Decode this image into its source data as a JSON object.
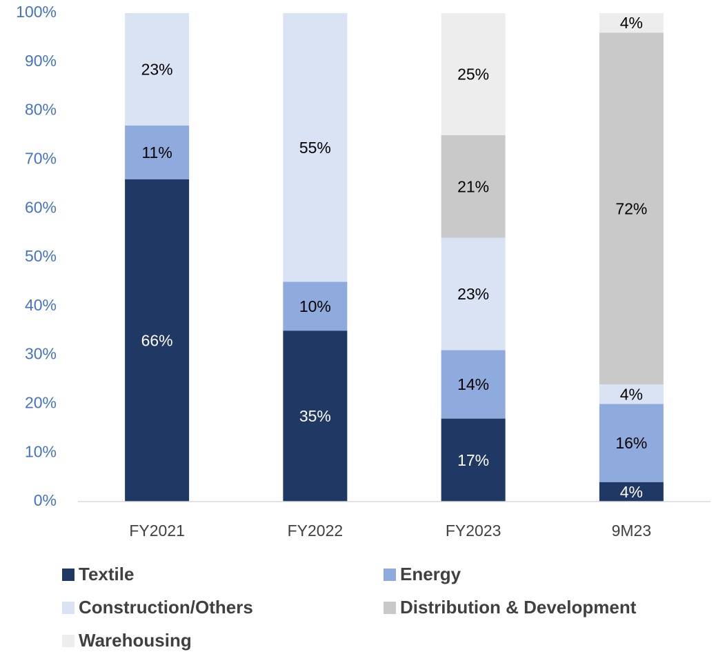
{
  "chart_data": {
    "type": "stacked_bar",
    "categories": [
      "FY2021",
      "FY2022",
      "FY2023",
      "9M23"
    ],
    "series": [
      {
        "name": "Textile",
        "color": "#203864",
        "values": [
          66,
          35,
          17,
          4
        ],
        "value_labels": [
          "66%",
          "35%",
          "17%",
          "4%"
        ]
      },
      {
        "name": "Energy",
        "color": "#8faadc",
        "values": [
          11,
          10,
          14,
          16
        ],
        "value_labels": [
          "11%",
          "10%",
          "14%",
          "16%"
        ]
      },
      {
        "name": "Construction/Others",
        "color": "#dae3f3",
        "values": [
          23,
          55,
          23,
          4
        ],
        "value_labels": [
          "23%",
          "55%",
          "23%",
          "4%"
        ]
      },
      {
        "name": "Distribution & Development",
        "color": "#c9c9c9",
        "values": [
          null,
          null,
          21,
          72
        ],
        "value_labels": [
          null,
          null,
          "21%",
          "72%"
        ]
      },
      {
        "name": "Warehousing",
        "color": "#ededed",
        "values": [
          null,
          null,
          25,
          4
        ],
        "value_labels": [
          null,
          null,
          "25%",
          "4%"
        ]
      }
    ],
    "ylim": [
      0,
      100
    ],
    "yticks": [
      {
        "value": 0,
        "label": "0%"
      },
      {
        "value": 10,
        "label": "10%"
      },
      {
        "value": 20,
        "label": "20%"
      },
      {
        "value": 30,
        "label": "30%"
      },
      {
        "value": 40,
        "label": "40%"
      },
      {
        "value": 50,
        "label": "50%"
      },
      {
        "value": 60,
        "label": "60%"
      },
      {
        "value": 70,
        "label": "70%"
      },
      {
        "value": 80,
        "label": "80%"
      },
      {
        "value": 90,
        "label": "90%"
      },
      {
        "value": 100,
        "label": "100%"
      }
    ],
    "grid": false,
    "legend": "bottom"
  }
}
